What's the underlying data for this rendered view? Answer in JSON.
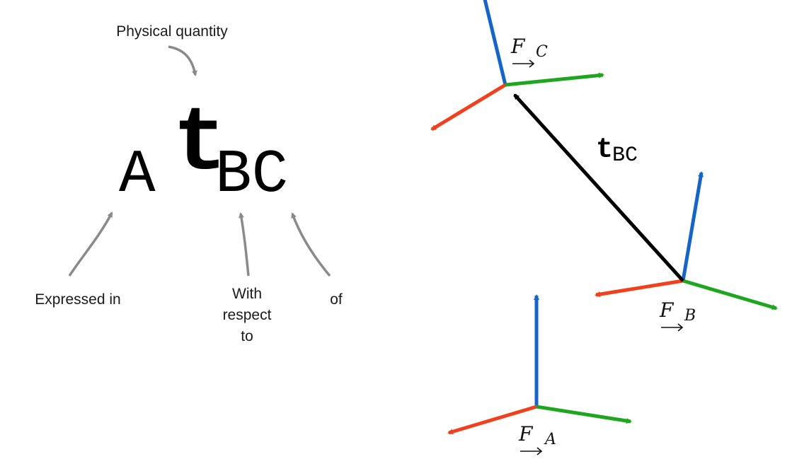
{
  "notation": {
    "prefix": "A",
    "symbol": "t",
    "subscript": "BC"
  },
  "annotations": {
    "physical_quantity": "Physical quantity",
    "expressed_in": "Expressed in",
    "with_respect_to": "With respect to",
    "of": "of"
  },
  "vector_label": {
    "symbol": "t",
    "subscript": "BC"
  },
  "frames": {
    "a": {
      "script": "F",
      "subscript": "A"
    },
    "b": {
      "script": "F",
      "subscript": "B"
    },
    "c": {
      "script": "F",
      "subscript": "C"
    }
  },
  "colors": {
    "x_axis": "#f0401d",
    "y_axis": "#1ea61e",
    "z_axis": "#1565c8",
    "vector": "#000000",
    "annotation_arrow": "#8a8a8a"
  }
}
